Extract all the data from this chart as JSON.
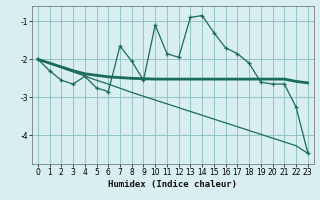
{
  "xlabel": "Humidex (Indice chaleur)",
  "bg_color": "#d8eef0",
  "grid_color": "#8bbcbc",
  "line_color": "#1a6b5a",
  "x_data": [
    0,
    1,
    2,
    3,
    4,
    5,
    6,
    7,
    8,
    9,
    10,
    11,
    12,
    13,
    14,
    15,
    16,
    17,
    18,
    19,
    20,
    21,
    22,
    23
  ],
  "line1_y": [
    -2.0,
    -2.3,
    -2.55,
    -2.65,
    -2.45,
    -2.75,
    -2.85,
    -1.65,
    -2.05,
    -2.55,
    -1.1,
    -1.85,
    -1.95,
    -0.9,
    -0.85,
    -1.3,
    -1.7,
    -1.85,
    -2.1,
    -2.6,
    -2.65,
    -2.65,
    -3.25,
    -4.45
  ],
  "line2_y": [
    -2.0,
    -2.1,
    -2.2,
    -2.3,
    -2.38,
    -2.42,
    -2.46,
    -2.48,
    -2.5,
    -2.51,
    -2.52,
    -2.52,
    -2.52,
    -2.52,
    -2.52,
    -2.52,
    -2.52,
    -2.52,
    -2.52,
    -2.52,
    -2.52,
    -2.52,
    -2.58,
    -2.62
  ],
  "line3_y": [
    -2.0,
    -2.1,
    -2.22,
    -2.33,
    -2.44,
    -2.55,
    -2.65,
    -2.76,
    -2.87,
    -2.97,
    -3.07,
    -3.17,
    -3.27,
    -3.37,
    -3.47,
    -3.57,
    -3.67,
    -3.77,
    -3.87,
    -3.97,
    -4.07,
    -4.17,
    -4.27,
    -4.47
  ],
  "ylim": [
    -4.75,
    -0.6
  ],
  "xlim": [
    -0.5,
    23.5
  ],
  "yticks": [
    -4,
    -3,
    -2,
    -1
  ],
  "xticks": [
    0,
    1,
    2,
    3,
    4,
    5,
    6,
    7,
    8,
    9,
    10,
    11,
    12,
    13,
    14,
    15,
    16,
    17,
    18,
    19,
    20,
    21,
    22,
    23
  ]
}
